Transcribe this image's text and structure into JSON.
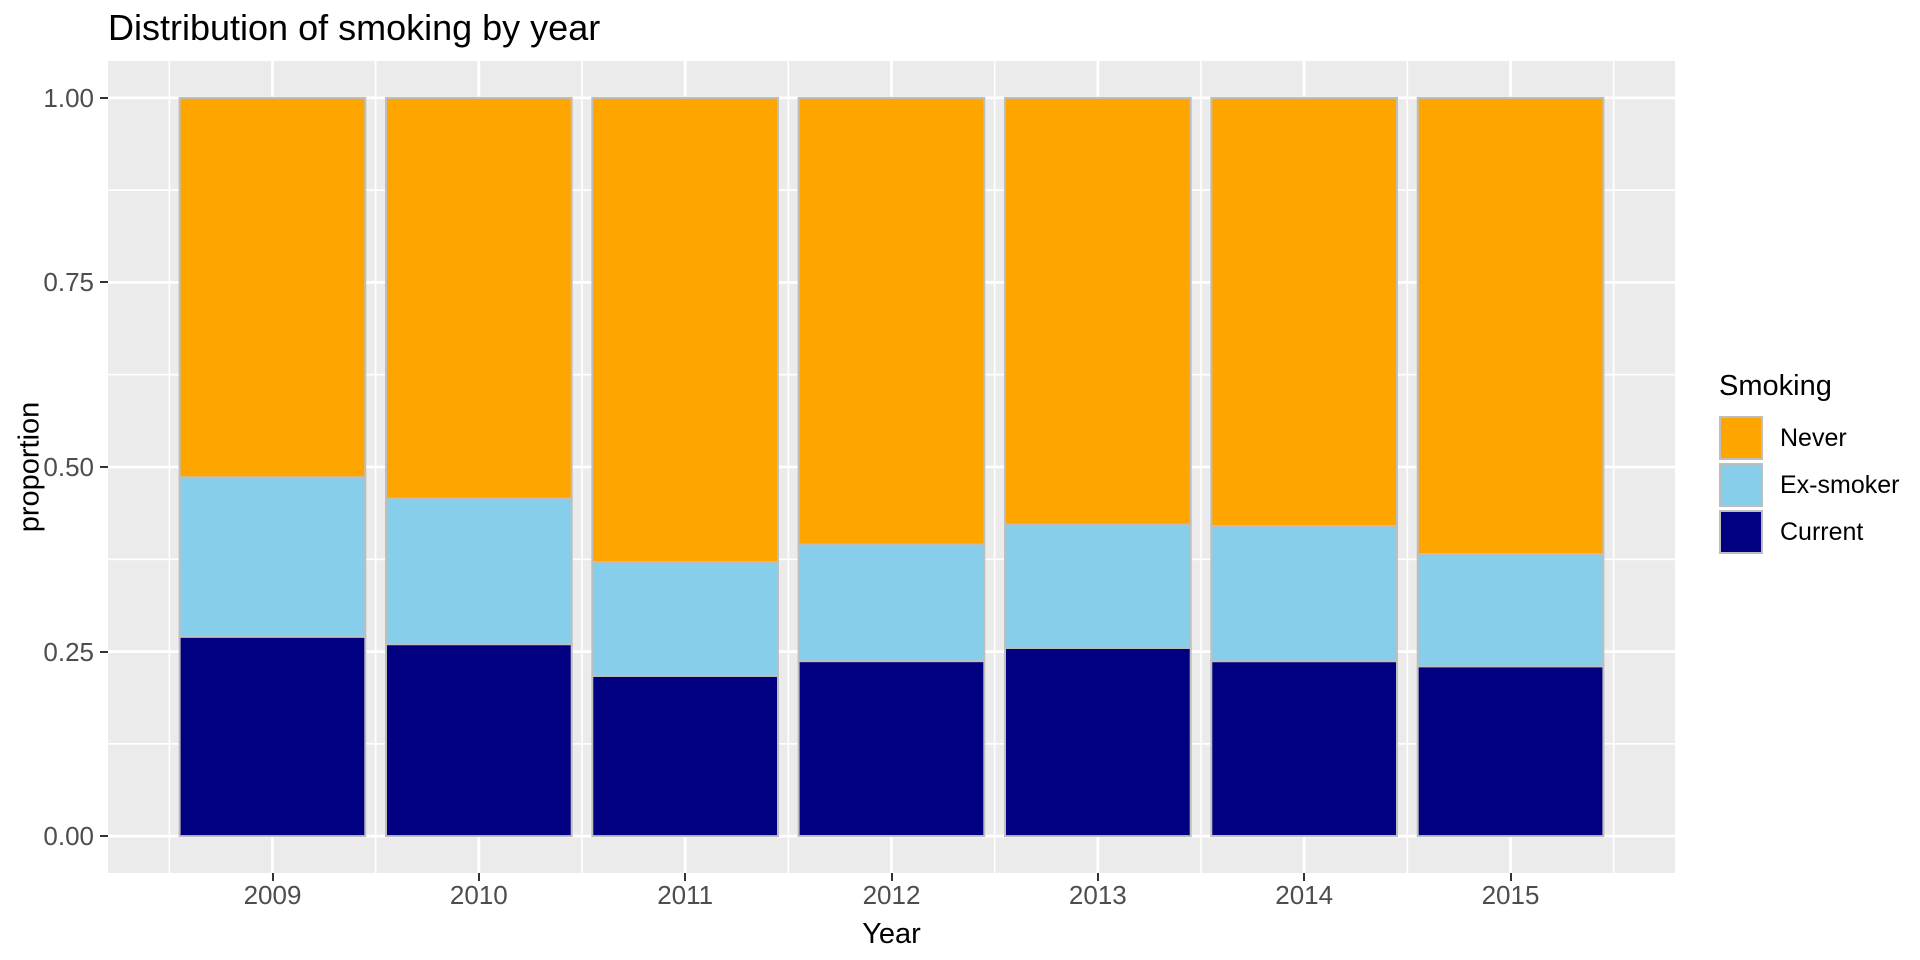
{
  "chart_data": {
    "type": "bar",
    "stacked": true,
    "orientation": "vertical",
    "title": "Distribution of smoking by year",
    "xlabel": "Year",
    "ylabel": "proportion",
    "categories": [
      "2009",
      "2010",
      "2011",
      "2012",
      "2013",
      "2014",
      "2015"
    ],
    "series": [
      {
        "name": "Current",
        "color": "#000080",
        "values": [
          0.27,
          0.26,
          0.217,
          0.237,
          0.255,
          0.237,
          0.23
        ]
      },
      {
        "name": "Ex-smoker",
        "color": "#87CEEB",
        "values": [
          0.216,
          0.197,
          0.154,
          0.158,
          0.167,
          0.183,
          0.152
        ]
      },
      {
        "name": "Never",
        "color": "#FFA500",
        "values": [
          0.514,
          0.543,
          0.629,
          0.605,
          0.578,
          0.58,
          0.618
        ]
      }
    ],
    "legend": {
      "title": "Smoking",
      "position": "right",
      "order": [
        "Never",
        "Ex-smoker",
        "Current"
      ]
    },
    "y_tick_labels": [
      "0.00",
      "0.25",
      "0.50",
      "0.75",
      "1.00"
    ],
    "y_tick_values": [
      0,
      0.25,
      0.5,
      0.75,
      1
    ],
    "y_minor": [
      0.125,
      0.375,
      0.625,
      0.875
    ],
    "ylim": [
      0,
      1
    ],
    "grid": true,
    "bar_width_fraction": 0.9,
    "panel_background": "#EBEBEB",
    "gridline_color": "#FFFFFF",
    "bar_border_color": "#BEBEBE",
    "tick_mark_color": "#333333",
    "tick_label_color": "#4D4D4D"
  }
}
